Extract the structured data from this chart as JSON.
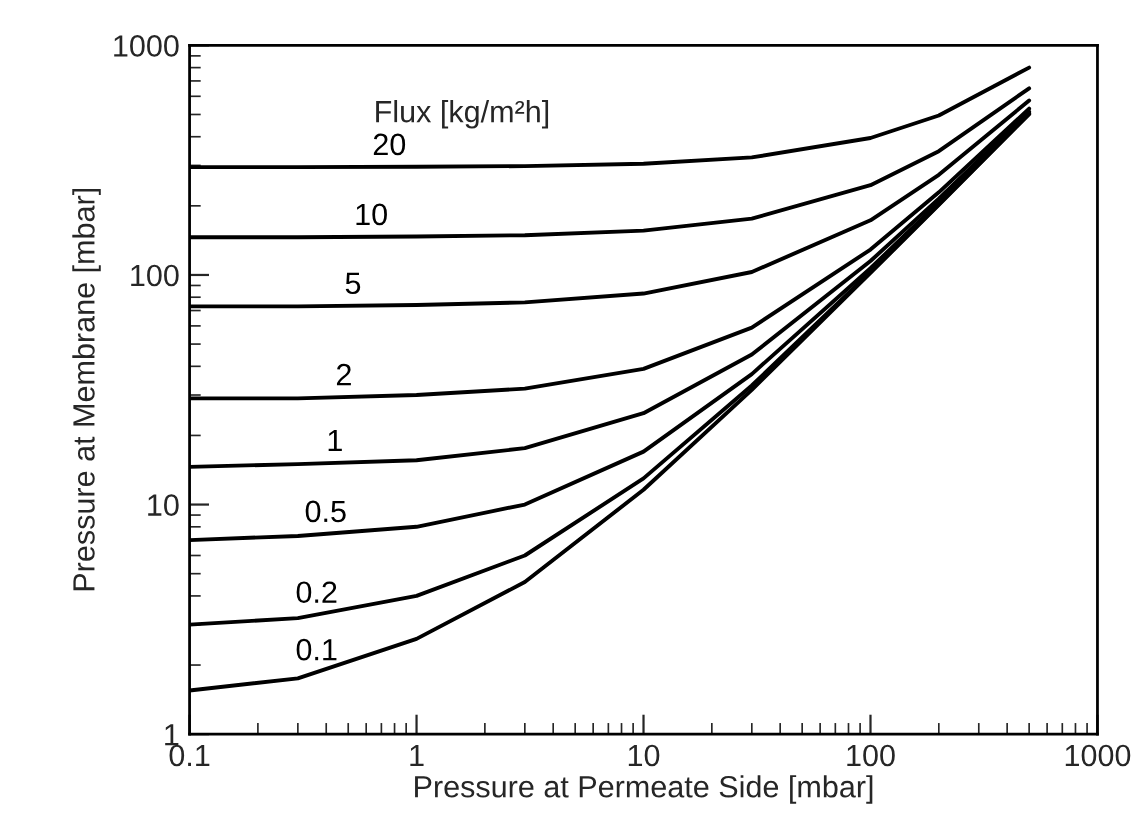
{
  "chart_data": {
    "type": "line",
    "xlabel": "Pressure at Permeate Side [mbar]",
    "ylabel": "Pressure at Membrane [mbar]",
    "legend_title": "Flux [kg/m²h]",
    "log": "xy",
    "xlim": [
      0.1,
      1000
    ],
    "ylim": [
      1,
      1000
    ],
    "xticks": [
      0.1,
      1,
      10,
      100,
      1000
    ],
    "yticks": [
      1,
      10,
      100,
      1000
    ],
    "grid": false,
    "marker": "none",
    "line_style": "solid",
    "x": [
      0.1,
      0.3,
      1,
      3,
      10,
      30,
      100,
      200,
      500
    ],
    "series": [
      {
        "name": "20",
        "color": "#000000",
        "values": [
          295,
          295,
          296,
          298,
          305,
          325,
          395,
          495,
          800
        ]
      },
      {
        "name": "10",
        "color": "#000000",
        "values": [
          146,
          146,
          147,
          149,
          156,
          176,
          246,
          346,
          650
        ]
      },
      {
        "name": "5",
        "color": "#000000",
        "values": [
          73,
          73,
          74,
          76,
          83,
          103,
          173,
          273,
          575
        ]
      },
      {
        "name": "2",
        "color": "#000000",
        "values": [
          29,
          29,
          30,
          32,
          39,
          59,
          129,
          229,
          530
        ]
      },
      {
        "name": "1",
        "color": "#000000",
        "values": [
          14.6,
          15,
          15.6,
          17.6,
          25,
          45,
          115,
          215,
          515
        ]
      },
      {
        "name": "0.5",
        "color": "#000000",
        "values": [
          7,
          7.3,
          8,
          10,
          17,
          37,
          107,
          207,
          508
        ]
      },
      {
        "name": "0.2",
        "color": "#000000",
        "values": [
          3,
          3.2,
          4,
          6,
          13,
          33,
          103,
          203,
          503
        ]
      },
      {
        "name": "0.1",
        "color": "#000000",
        "values": [
          1.55,
          1.75,
          2.6,
          4.6,
          11.6,
          31.6,
          102,
          202,
          502
        ]
      }
    ]
  }
}
